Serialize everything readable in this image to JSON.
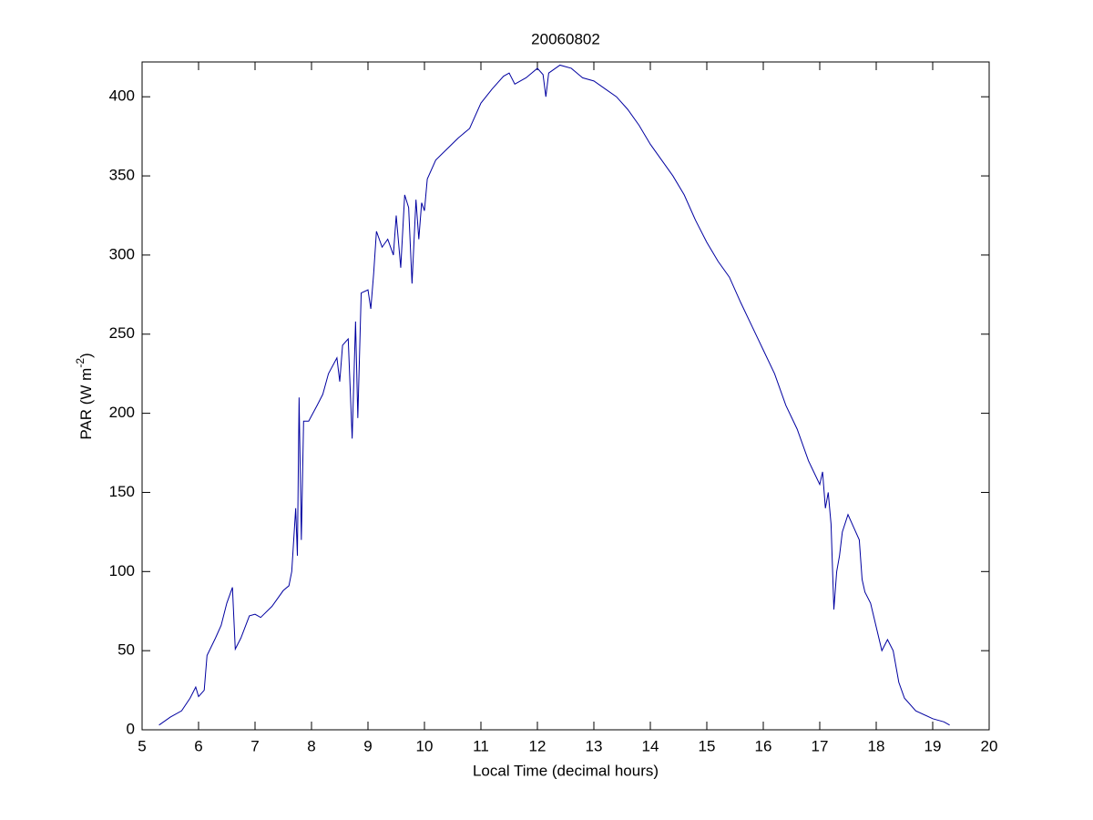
{
  "chart_data": {
    "type": "line",
    "title": "20060802",
    "xlabel": "Local Time (decimal hours)",
    "ylabel": [
      {
        "text": "PAR (W m"
      },
      {
        "text": "-2",
        "sup": true
      },
      {
        "text": ")"
      }
    ],
    "xlim": [
      5,
      20
    ],
    "ylim": [
      0,
      422
    ],
    "xticks": [
      5,
      6,
      7,
      8,
      9,
      10,
      11,
      12,
      13,
      14,
      15,
      16,
      17,
      18,
      19,
      20
    ],
    "yticks": [
      0,
      50,
      100,
      150,
      200,
      250,
      300,
      350,
      400
    ],
    "color": "#0000a0",
    "x": [
      5.3,
      5.5,
      5.7,
      5.85,
      5.95,
      6.0,
      6.1,
      6.15,
      6.3,
      6.4,
      6.5,
      6.6,
      6.65,
      6.75,
      6.9,
      7.0,
      7.1,
      7.3,
      7.5,
      7.6,
      7.65,
      7.72,
      7.75,
      7.78,
      7.82,
      7.86,
      7.95,
      8.1,
      8.2,
      8.3,
      8.45,
      8.5,
      8.55,
      8.65,
      8.72,
      8.78,
      8.82,
      8.88,
      9.0,
      9.05,
      9.1,
      9.15,
      9.25,
      9.35,
      9.45,
      9.5,
      9.58,
      9.65,
      9.72,
      9.78,
      9.85,
      9.9,
      9.95,
      10.0,
      10.05,
      10.2,
      10.4,
      10.6,
      10.8,
      11.0,
      11.2,
      11.4,
      11.5,
      11.6,
      11.8,
      12.0,
      12.1,
      12.15,
      12.2,
      12.4,
      12.6,
      12.8,
      13.0,
      13.2,
      13.4,
      13.6,
      13.8,
      14.0,
      14.2,
      14.4,
      14.6,
      14.8,
      15.0,
      15.2,
      15.4,
      15.6,
      15.8,
      16.0,
      16.2,
      16.4,
      16.6,
      16.8,
      17.0,
      17.05,
      17.1,
      17.15,
      17.2,
      17.25,
      17.3,
      17.35,
      17.4,
      17.5,
      17.6,
      17.7,
      17.75,
      17.8,
      17.9,
      18.0,
      18.1,
      18.2,
      18.3,
      18.4,
      18.5,
      18.7,
      19.0,
      19.2,
      19.3
    ],
    "y": [
      3,
      8,
      12,
      20,
      27,
      21,
      25,
      47,
      58,
      66,
      80,
      90,
      51,
      58,
      72,
      73,
      71,
      78,
      88,
      91,
      100,
      140,
      110,
      210,
      120,
      195,
      195,
      205,
      212,
      225,
      235,
      220,
      243,
      247,
      184,
      258,
      197,
      276,
      278,
      266,
      288,
      315,
      305,
      310,
      300,
      325,
      292,
      338,
      330,
      282,
      335,
      310,
      333,
      328,
      348,
      360,
      367,
      374,
      380,
      396,
      405,
      413,
      415,
      408,
      412,
      418,
      414,
      400,
      415,
      420,
      418,
      412,
      410,
      405,
      400,
      392,
      382,
      370,
      360,
      350,
      338,
      322,
      308,
      296,
      286,
      270,
      255,
      240,
      225,
      205,
      190,
      170,
      155,
      163,
      140,
      150,
      130,
      76,
      100,
      110,
      125,
      136,
      128,
      120,
      95,
      87,
      80,
      65,
      50,
      57,
      50,
      30,
      20,
      12,
      7,
      5,
      3
    ]
  }
}
